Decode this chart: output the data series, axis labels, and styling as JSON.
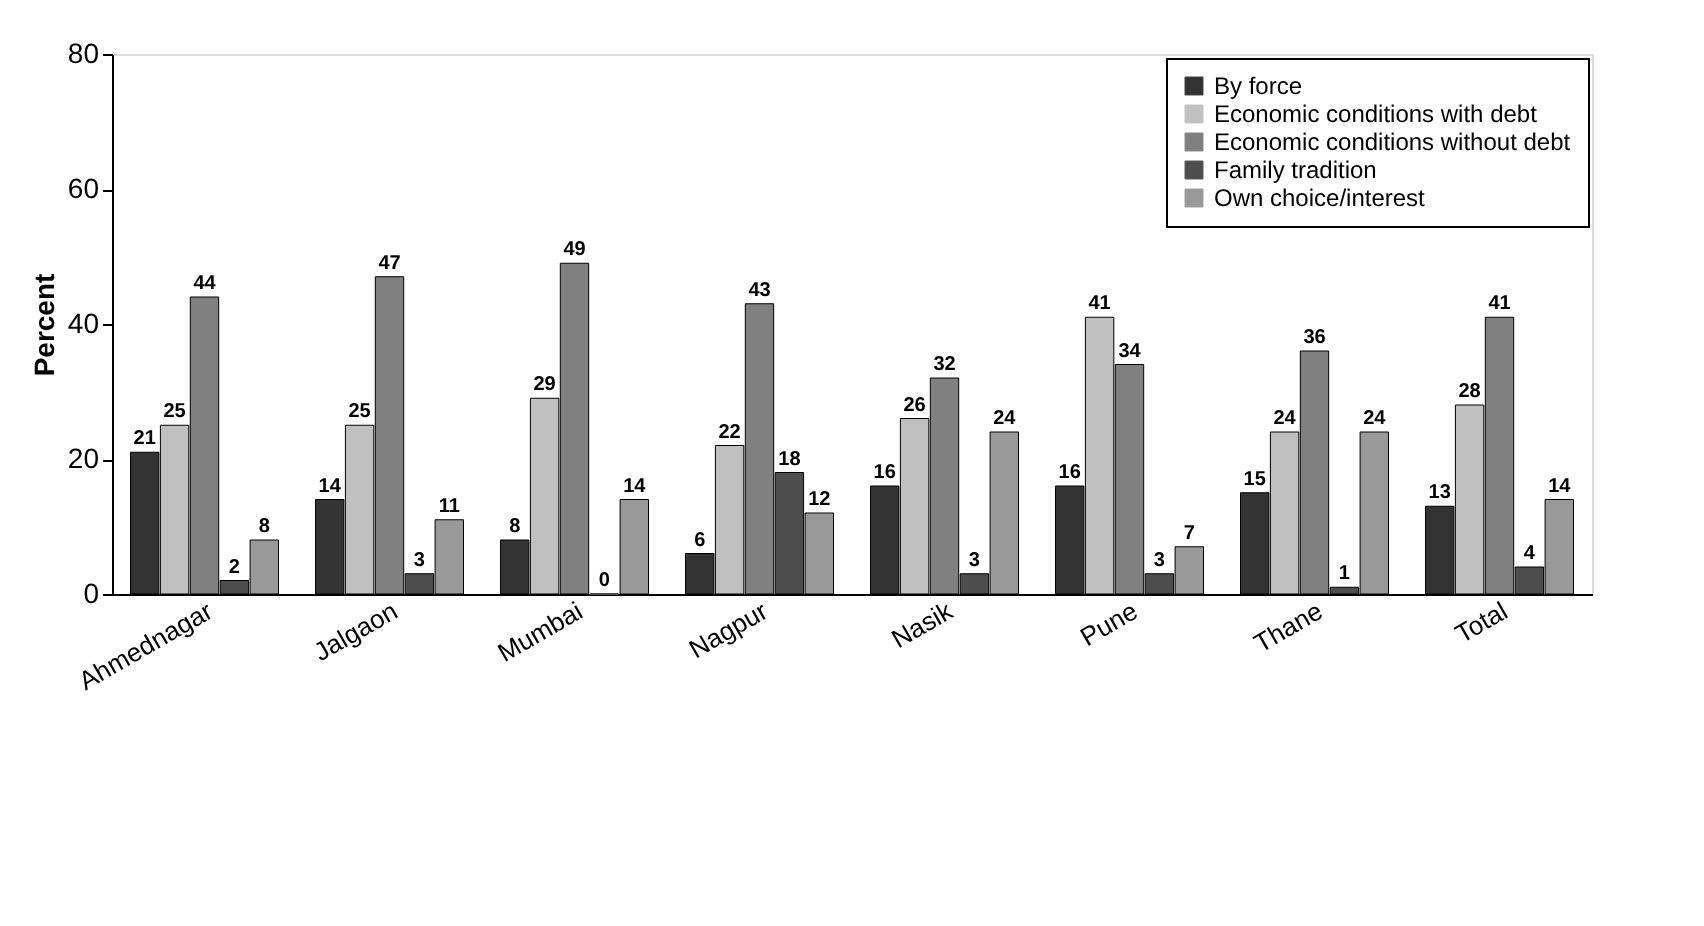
{
  "chart_data": {
    "type": "bar",
    "ylabel": "Percent",
    "categories": [
      "Ahmednagar",
      "Jalgaon",
      "Mumbai",
      "Nagpur",
      "Nasik",
      "Pune",
      "Thane",
      "Total"
    ],
    "series": [
      {
        "name": "By force",
        "color": "#333333",
        "values": [
          21,
          14,
          8,
          6,
          16,
          16,
          15,
          13
        ]
      },
      {
        "name": "Economic conditions with debt",
        "color": "#c0c0c0",
        "values": [
          25,
          25,
          29,
          22,
          26,
          41,
          24,
          28
        ]
      },
      {
        "name": "Economic conditions without debt",
        "color": "#808080",
        "values": [
          44,
          47,
          49,
          43,
          32,
          34,
          36,
          41
        ]
      },
      {
        "name": "Family tradition",
        "color": "#4d4d4d",
        "values": [
          2,
          3,
          0,
          18,
          3,
          3,
          1,
          4
        ]
      },
      {
        "name": "Own choice/interest",
        "color": "#999999",
        "values": [
          8,
          11,
          14,
          12,
          24,
          7,
          24,
          14
        ]
      }
    ],
    "ylim": [
      0,
      80
    ],
    "yticks": [
      0,
      20,
      40,
      60,
      80
    ],
    "grid": false,
    "legend": "top right",
    "data_labels": true
  }
}
